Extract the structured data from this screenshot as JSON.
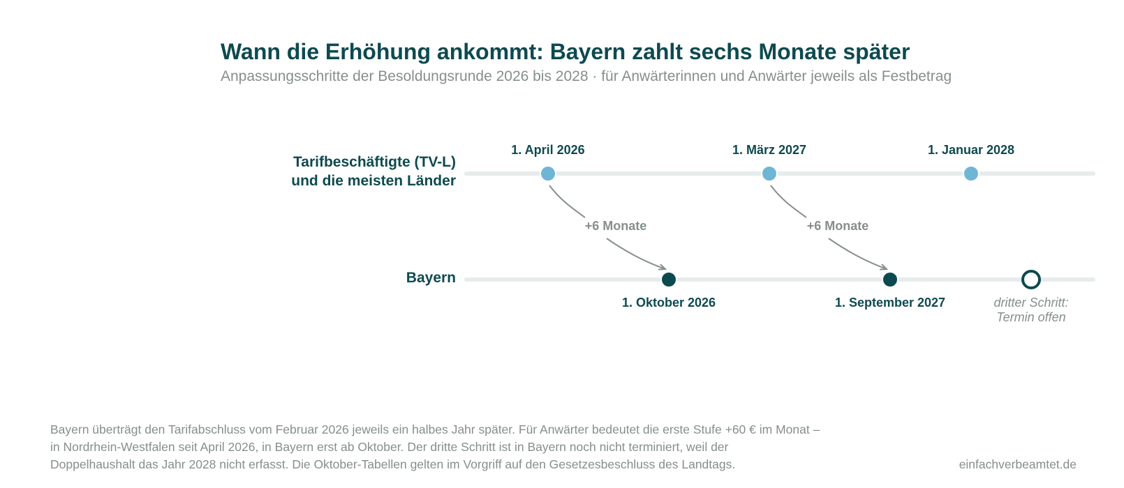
{
  "header": {
    "title": "Wann die Erhöhung ankommt: Bayern zahlt sechs Monate später",
    "subtitle": "Anpassungsschritte der Besoldungsrunde 2026 bis 2028 · für Anwärterinnen und Anwärter jeweils als Festbetrag"
  },
  "rows": {
    "tvl": {
      "label_line1": "Tarifbeschäftigte (TV-L)",
      "label_line2": "und die meisten Länder"
    },
    "bayern": {
      "label": "Bayern"
    }
  },
  "tvl_events": [
    {
      "date_label": "1. April 2026"
    },
    {
      "date_label": "1. März 2027"
    },
    {
      "date_label": "1. Januar 2028"
    }
  ],
  "bayern_events": [
    {
      "date_label": "1. Oktober 2026"
    },
    {
      "date_label": "1. September 2027"
    }
  ],
  "open_step": {
    "line1": "dritter Schritt:",
    "line2": "Termin offen"
  },
  "delays": [
    {
      "label": "+6 Monate"
    },
    {
      "label": "+6 Monate"
    }
  ],
  "colors": {
    "tvl_dot": "#6fb6d6",
    "bayern_dot": "#0d4a4f",
    "track": "#e6ecec",
    "arrow": "#868e8e",
    "text_dark": "#0d4a4f",
    "text_muted": "#868e8e"
  },
  "footer": {
    "note_line1": "Bayern überträgt den Tarifabschluss vom Februar 2026 jeweils ein halbes Jahr später. Für Anwärter bedeutet die erste Stufe +60 € im Monat –",
    "note_line2": "in Nordrhein-Westfalen seit April 2026, in Bayern erst ab Oktober. Der dritte Schritt ist in Bayern noch nicht terminiert, weil der",
    "note_line3": "Doppelhaushalt das Jahr 2028 nicht erfasst. Die Oktober-Tabellen gelten im Vorgriff auf den Gesetzesbeschluss des Landtags.",
    "source": "einfachverbeamtet.de"
  }
}
